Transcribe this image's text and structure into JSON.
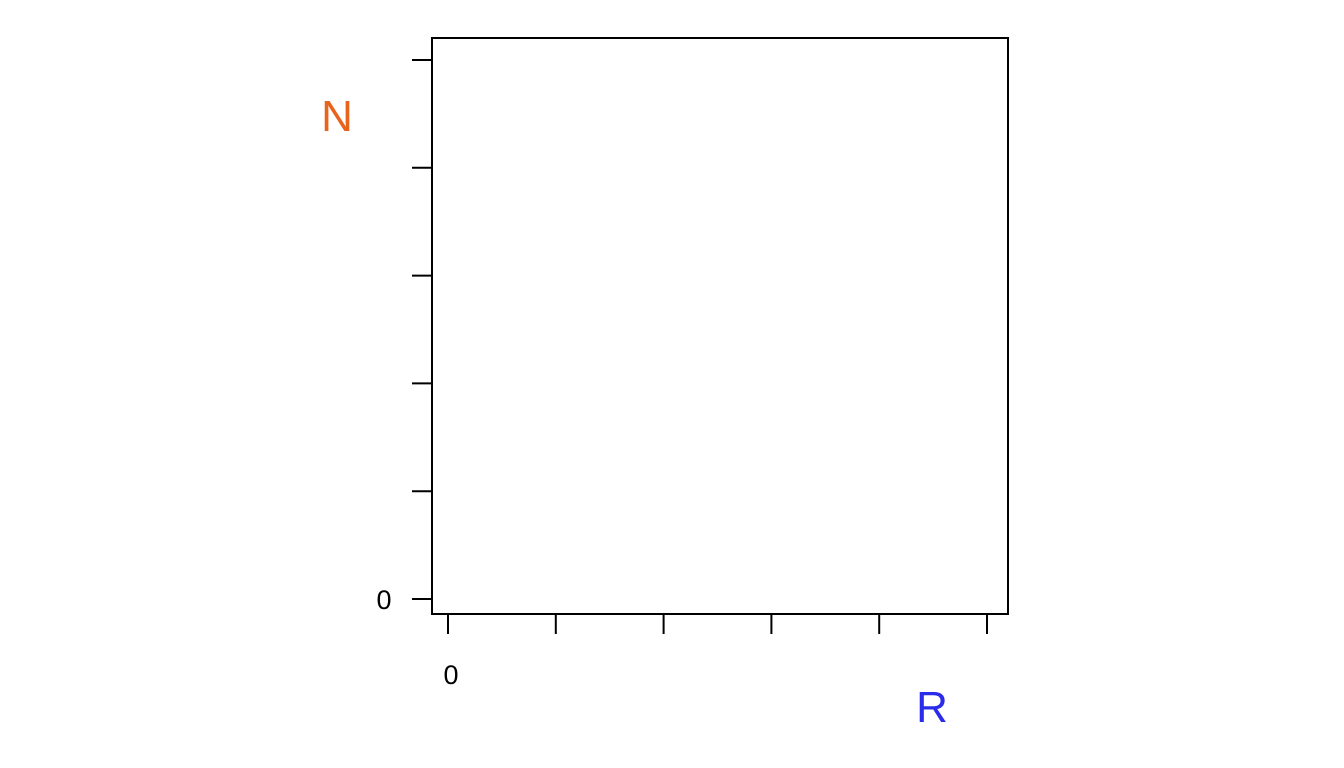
{
  "chart_data": {
    "type": "line",
    "xlabel": "R",
    "ylabel": "N",
    "x_tick_labels": [
      "0",
      "",
      "",
      "",
      "",
      ""
    ],
    "y_tick_labels": [
      "0",
      "",
      "",
      "",
      "",
      ""
    ],
    "series": [],
    "grid": false,
    "colors": {
      "xlabel": "#2b2bea",
      "ylabel": "#e8631c",
      "axes": "#000000"
    }
  }
}
